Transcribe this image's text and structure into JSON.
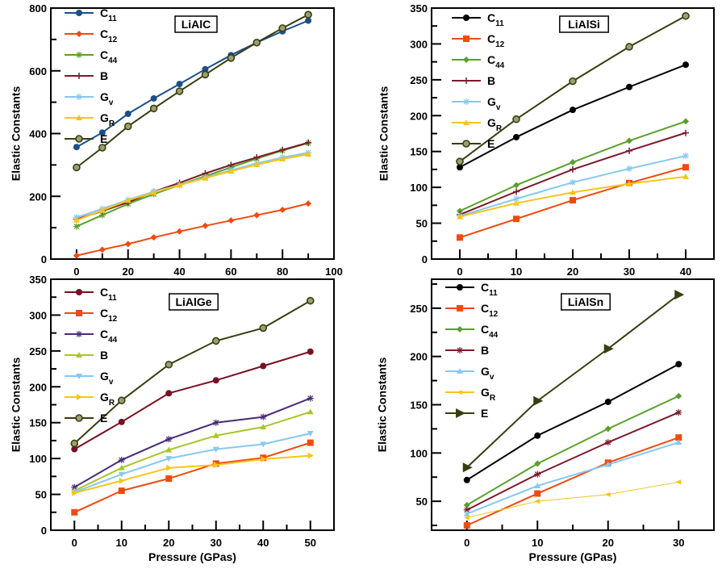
{
  "chart_data": [
    {
      "type": "line",
      "title": "LiAlC",
      "xlabel": "",
      "ylabel": "Elastic  Constants",
      "xlim": [
        -10,
        100
      ],
      "ylim": [
        0,
        800
      ],
      "xticks": [
        0,
        20,
        40,
        60,
        80,
        100
      ],
      "yticks": [
        0,
        200,
        400,
        600,
        800
      ],
      "grid": false,
      "legend": "top-left",
      "x": [
        0,
        10,
        20,
        30,
        40,
        50,
        60,
        70,
        80,
        90
      ],
      "series": [
        {
          "name": "C11",
          "color": "#1a4f8a",
          "marker": "circle",
          "values": [
            357,
            403,
            463,
            512,
            558,
            605,
            650,
            690,
            726,
            760
          ]
        },
        {
          "name": "C12",
          "color": "#f04a10",
          "marker": "diamond",
          "values": [
            11,
            30,
            48,
            69,
            88,
            106,
            123,
            140,
            157,
            177
          ]
        },
        {
          "name": "C44",
          "color": "#5aa02c",
          "marker": "asterisk",
          "values": [
            104,
            140,
            176,
            207,
            236,
            264,
            292,
            320,
            346,
            370
          ]
        },
        {
          "name": "B",
          "color": "#7b1a2a",
          "marker": "plus",
          "values": [
            127,
            153,
            181,
            215,
            243,
            273,
            300,
            324,
            348,
            371
          ]
        },
        {
          "name": "Gv",
          "color": "#87c8f0",
          "marker": "asterisk",
          "values": [
            133,
            160,
            189,
            215,
            236,
            260,
            283,
            305,
            324,
            339
          ]
        },
        {
          "name": "GR",
          "color": "#f5c518",
          "marker": "triangle",
          "values": [
            124,
            155,
            187,
            212,
            236,
            258,
            280,
            301,
            319,
            334
          ]
        },
        {
          "name": "E",
          "color": "#3a3d10",
          "marker": "open-circle",
          "values": [
            292,
            355,
            423,
            480,
            535,
            588,
            641,
            690,
            736,
            779
          ]
        }
      ]
    },
    {
      "type": "line",
      "title": "LiAlSi",
      "xlabel": "",
      "ylabel": "Elastic  Constants",
      "xlim": [
        -5,
        45
      ],
      "ylim": [
        0,
        350
      ],
      "xticks": [
        0,
        10,
        20,
        30,
        40
      ],
      "yticks": [
        0,
        50,
        100,
        150,
        200,
        250,
        300,
        350
      ],
      "grid": false,
      "legend": "top-left",
      "x": [
        0,
        10,
        20,
        30,
        40
      ],
      "series": [
        {
          "name": "C11",
          "color": "#000000",
          "marker": "circle",
          "values": [
            128,
            170,
            208,
            240,
            271
          ]
        },
        {
          "name": "C12",
          "color": "#f04a10",
          "marker": "square",
          "values": [
            30,
            56,
            82,
            106,
            128
          ]
        },
        {
          "name": "C44",
          "color": "#5aa02c",
          "marker": "diamond",
          "values": [
            67,
            103,
            135,
            165,
            192
          ]
        },
        {
          "name": "B",
          "color": "#7b1a2a",
          "marker": "plus",
          "values": [
            62,
            94,
            125,
            151,
            176
          ]
        },
        {
          "name": "Gv",
          "color": "#87c8f0",
          "marker": "asterisk",
          "values": [
            60,
            84,
            107,
            126,
            144
          ]
        },
        {
          "name": "GR",
          "color": "#f5c518",
          "marker": "triangle",
          "values": [
            59,
            78,
            93,
            105,
            115
          ]
        },
        {
          "name": "E",
          "color": "#3a3d10",
          "marker": "open-circle",
          "values": [
            136,
            195,
            248,
            296,
            339
          ]
        }
      ]
    },
    {
      "type": "line",
      "title": "LiAlGe",
      "xlabel": "Pressure (GPas)",
      "ylabel": "Elastic  Constants",
      "xlim": [
        -5,
        55
      ],
      "ylim": [
        0,
        350
      ],
      "xticks": [
        0,
        10,
        20,
        30,
        40,
        50
      ],
      "yticks": [
        0,
        50,
        100,
        150,
        200,
        250,
        300,
        350
      ],
      "grid": false,
      "legend": "top-left",
      "x": [
        0,
        10,
        20,
        30,
        40,
        50
      ],
      "series": [
        {
          "name": "C11",
          "color": "#7a1020",
          "marker": "circle",
          "values": [
            113,
            151,
            191,
            209,
            229,
            249
          ]
        },
        {
          "name": "C12",
          "color": "#f04a10",
          "marker": "square",
          "values": [
            25,
            55,
            72,
            93,
            101,
            122
          ]
        },
        {
          "name": "C44",
          "color": "#4a2a78",
          "marker": "asterisk",
          "values": [
            60,
            98,
            127,
            150,
            158,
            184
          ]
        },
        {
          "name": "B",
          "color": "#a8c62a",
          "marker": "triangle",
          "values": [
            55,
            87,
            112,
            132,
            144,
            165
          ]
        },
        {
          "name": "Gv",
          "color": "#87c8f0",
          "marker": "triangle-down",
          "values": [
            53,
            78,
            100,
            113,
            120,
            135
          ]
        },
        {
          "name": "GR",
          "color": "#f5c518",
          "marker": "triangle-right",
          "values": [
            52,
            69,
            87,
            91,
            99,
            104
          ]
        },
        {
          "name": "E",
          "color": "#3a3d10",
          "marker": "open-circle",
          "values": [
            121,
            181,
            231,
            264,
            282,
            320
          ]
        }
      ]
    },
    {
      "type": "line",
      "title": "LiAlSn",
      "xlabel": "Pressure (GPas)",
      "ylabel": "Elastic  Constants",
      "xlim": [
        -5,
        35
      ],
      "ylim": [
        20,
        280
      ],
      "xticks": [
        0,
        10,
        20,
        30
      ],
      "yticks": [
        50,
        100,
        150,
        200,
        250
      ],
      "grid": false,
      "legend": "top-left",
      "x": [
        0,
        10,
        20,
        30
      ],
      "series": [
        {
          "name": "C11",
          "color": "#000000",
          "marker": "circle",
          "values": [
            72,
            118,
            153,
            192
          ]
        },
        {
          "name": "C12",
          "color": "#f04a10",
          "marker": "square",
          "values": [
            25,
            58,
            90,
            116
          ]
        },
        {
          "name": "C44",
          "color": "#5aa02c",
          "marker": "diamond",
          "values": [
            46,
            89,
            125,
            159
          ]
        },
        {
          "name": "B",
          "color": "#7b1a2a",
          "marker": "asterisk",
          "values": [
            41,
            78,
            111,
            142
          ]
        },
        {
          "name": "Gv",
          "color": "#87c8f0",
          "marker": "triangle",
          "values": [
            37,
            66,
            88,
            111
          ]
        },
        {
          "name": "GR",
          "color": "#f5c518",
          "marker": "triangle-left",
          "values": [
            33,
            50,
            57,
            70
          ]
        },
        {
          "name": "E",
          "color": "#3a3d10",
          "marker": "triangle-right-big",
          "values": [
            85,
            154,
            208,
            264
          ]
        }
      ]
    }
  ]
}
